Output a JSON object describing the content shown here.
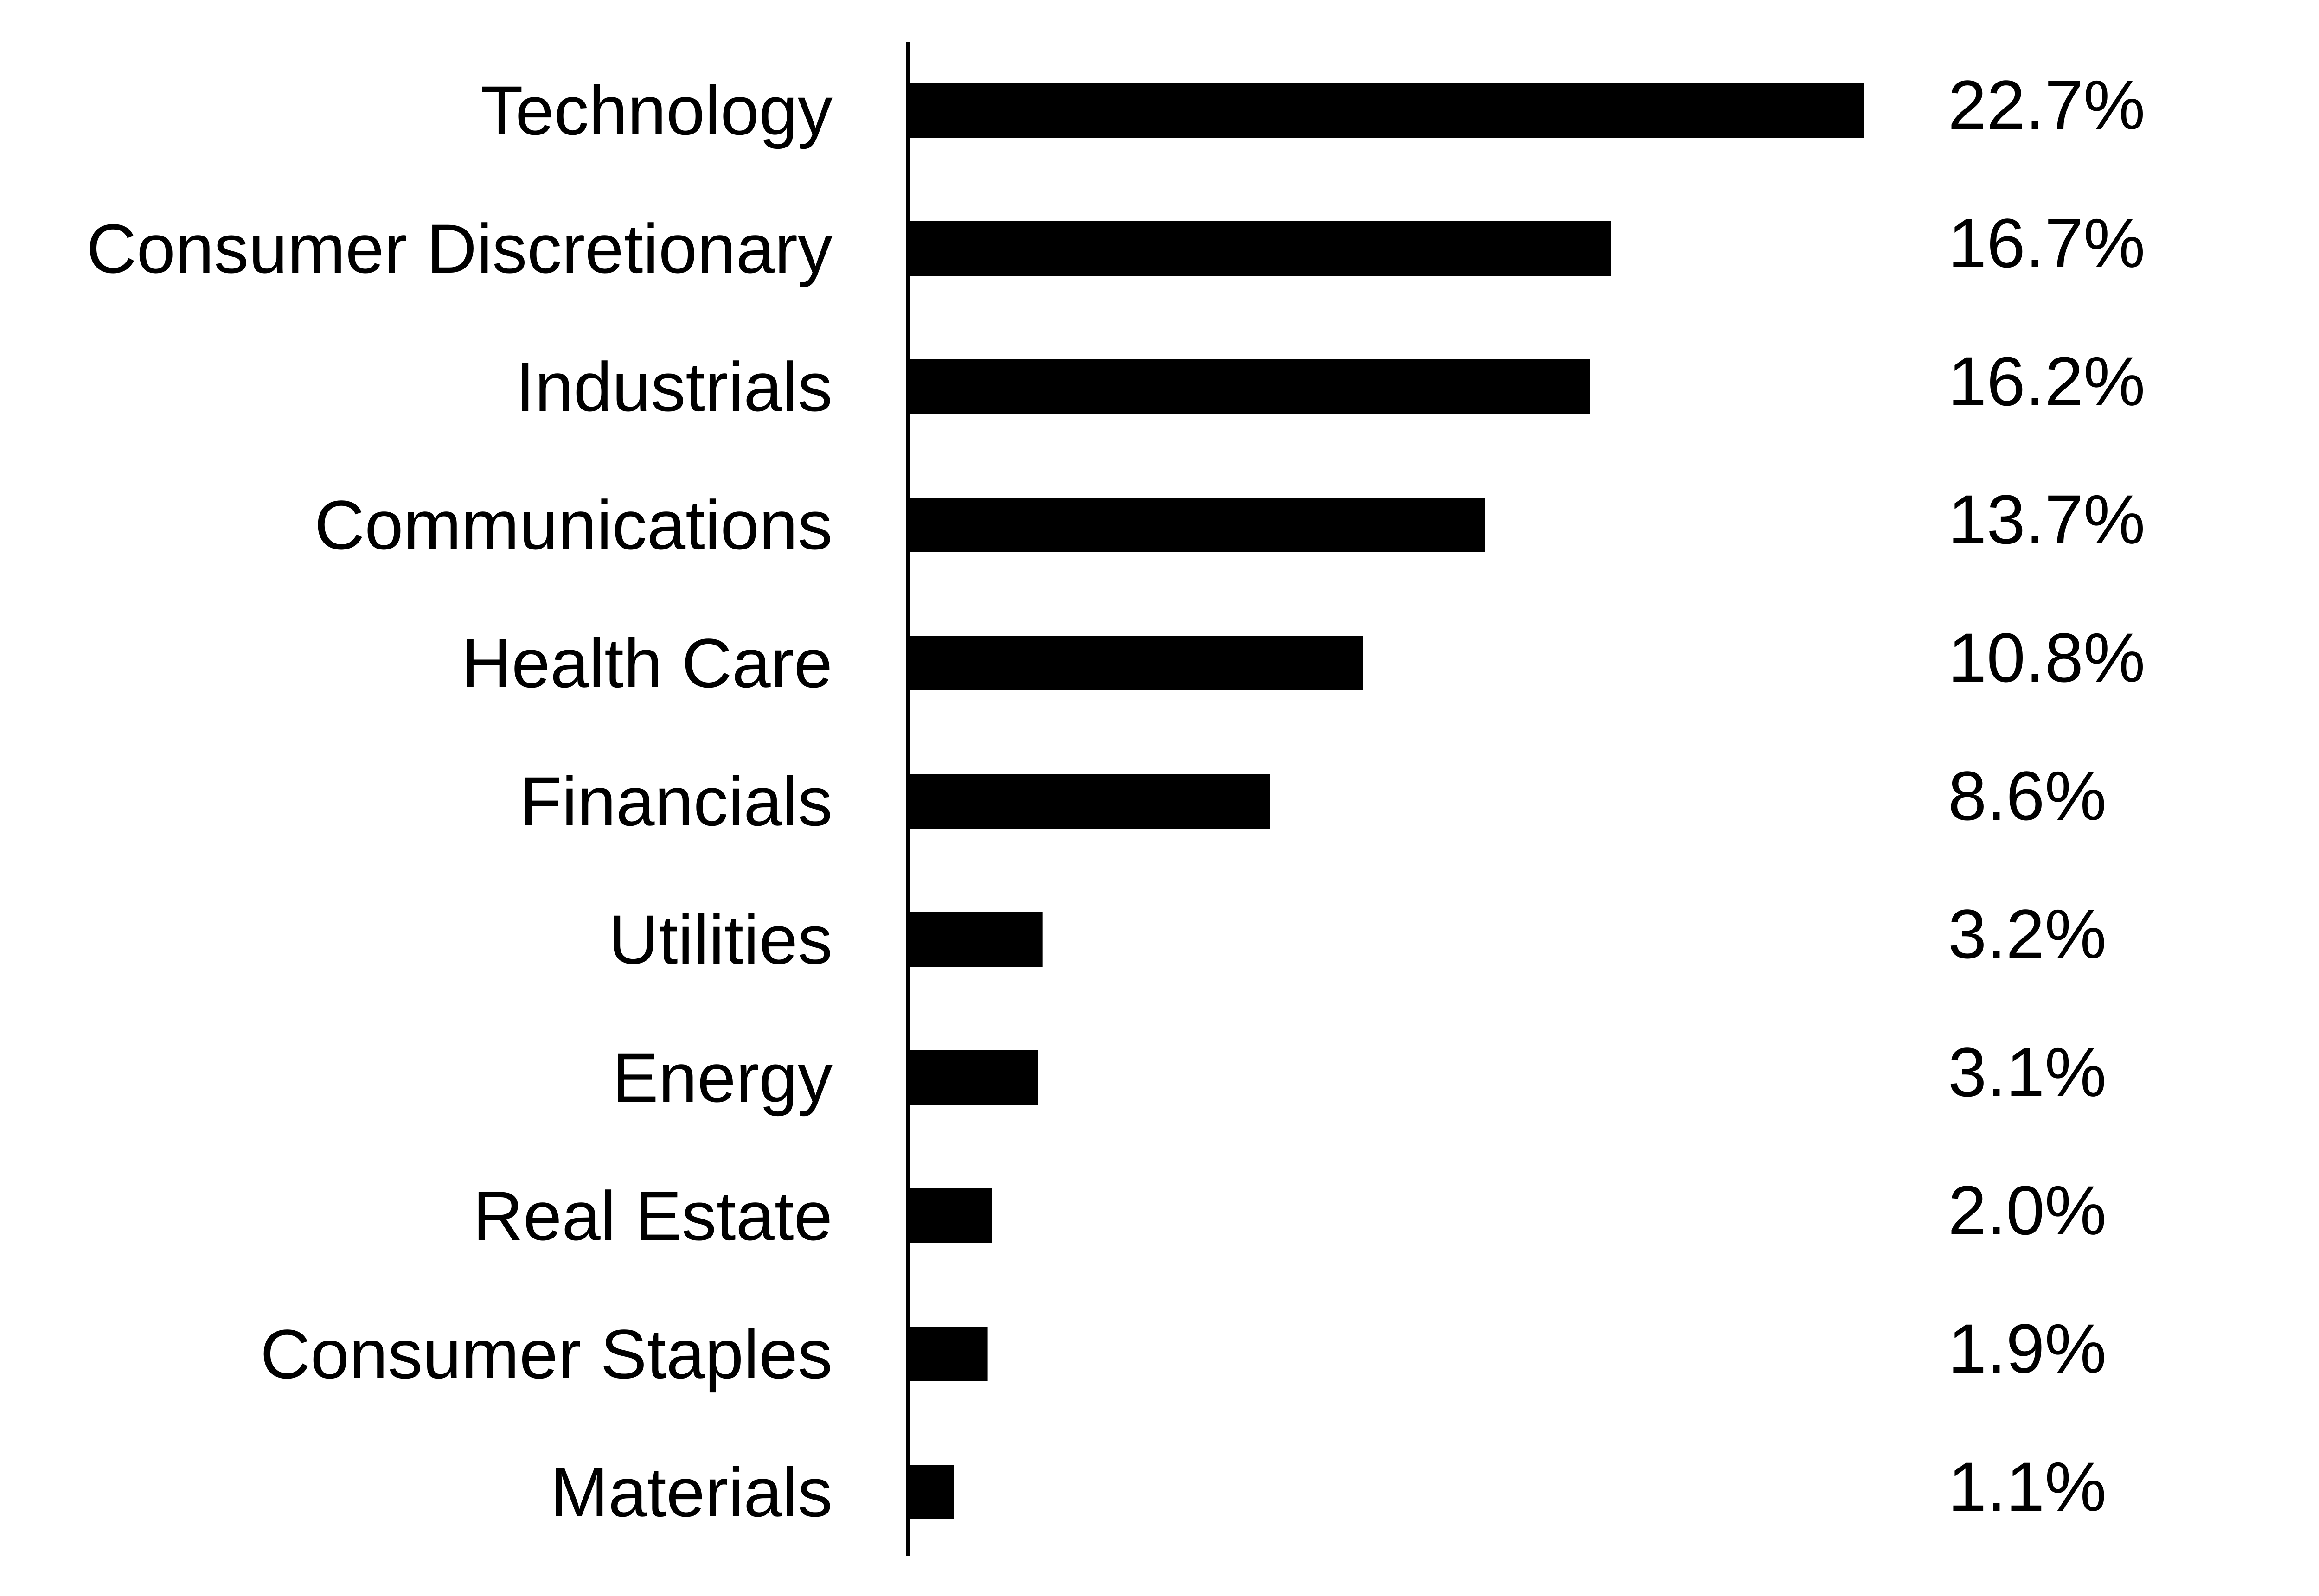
{
  "chart_data": {
    "type": "bar",
    "orientation": "horizontal",
    "title": "",
    "xlabel": "",
    "ylabel": "",
    "categories": [
      "Technology",
      "Consumer Discretionary",
      "Industrials",
      "Communications",
      "Health Care",
      "Financials",
      "Utilities",
      "Energy",
      "Real Estate",
      "Consumer Staples",
      "Materials"
    ],
    "values": [
      22.7,
      16.7,
      16.2,
      13.7,
      10.8,
      8.6,
      3.2,
      3.1,
      2.0,
      1.9,
      1.1
    ],
    "value_labels": [
      "22.7%",
      "16.7%",
      "16.2%",
      "13.7%",
      "10.8%",
      "8.6%",
      "3.2%",
      "3.1%",
      "2.0%",
      "1.9%",
      "1.1%"
    ],
    "unit": "%",
    "xlim": [
      0,
      22.7
    ],
    "grid": false,
    "legend": "none",
    "bar_color": "#000000"
  }
}
